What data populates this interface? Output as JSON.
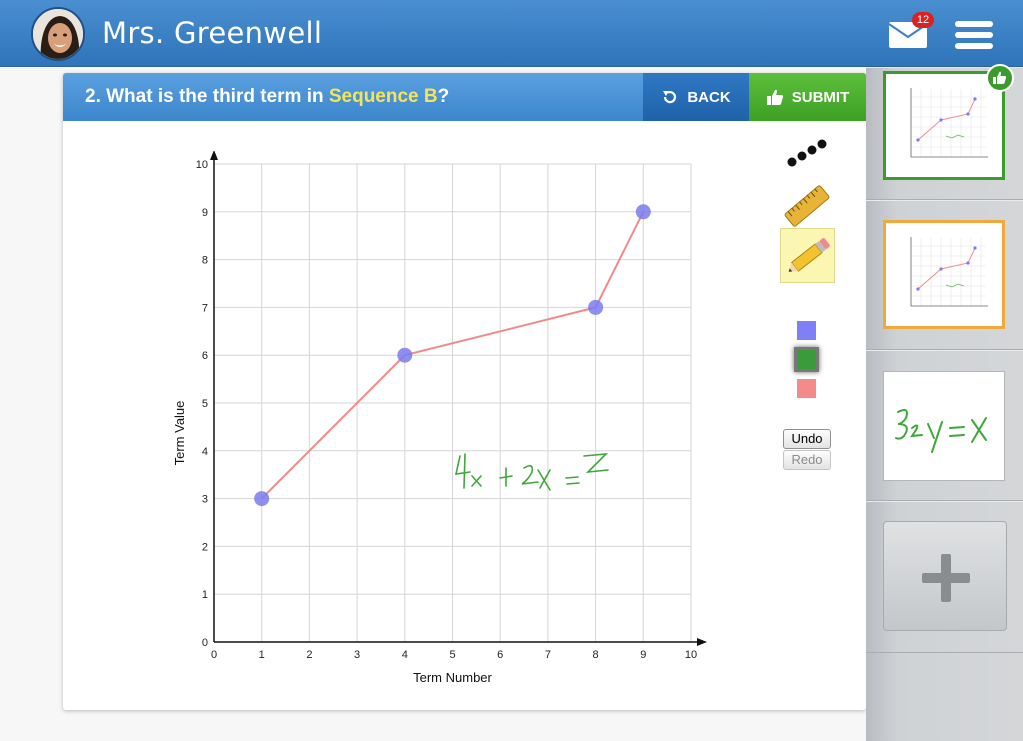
{
  "header": {
    "teacher_name": "Mrs. Greenwell",
    "mail_count": "12"
  },
  "question": {
    "prefix": "2. What is the third term in ",
    "highlight": "Sequence B",
    "suffix": "?",
    "back_label": "BACK",
    "submit_label": "SUBMIT"
  },
  "tools": {
    "undo_label": "Undo",
    "redo_label": "Redo",
    "colors": [
      "#7f7ff7",
      "#3b9a3b",
      "#f58a8a"
    ]
  },
  "handwriting": {
    "equation": "4x + 2x = Z",
    "thumbnail_note": "3₂y = x"
  },
  "chart_data": {
    "type": "line",
    "xlabel": "Term Number",
    "ylabel": "Term Value",
    "xlim": [
      0,
      10
    ],
    "ylim": [
      0,
      10
    ],
    "x_ticks": [
      "0",
      "1",
      "2",
      "3",
      "4",
      "5",
      "6",
      "7",
      "8",
      "9",
      "10"
    ],
    "y_ticks": [
      "0",
      "1",
      "2",
      "3",
      "4",
      "5",
      "6",
      "7",
      "8",
      "9",
      "10"
    ],
    "grid": true,
    "series": [
      {
        "x": [
          1,
          4,
          8,
          9
        ],
        "y": [
          3,
          6,
          7,
          9
        ],
        "line_color": "#f08a8a",
        "point_color": "#7b7bf0"
      }
    ]
  },
  "sidebar": {
    "add_label": "+"
  }
}
